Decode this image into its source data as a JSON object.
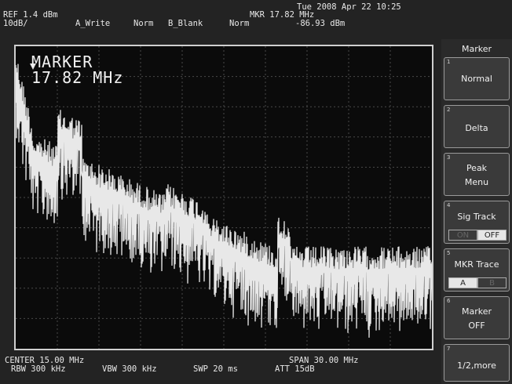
{
  "header": {
    "datetime": "Tue 2008 Apr 22 10:25",
    "ref": "REF 1.4 dBm",
    "scale": "10dB/",
    "trace_a": "A_Write",
    "trace_a_mode": "Norm",
    "trace_b": "B_Blank",
    "trace_b_mode": "Norm",
    "marker_freq": "MKR 17.82 MHz",
    "marker_level": "-86.93 dBm"
  },
  "display": {
    "marker_title": "MARKER",
    "marker_value": "17.82 MHz"
  },
  "footer": {
    "center": "CENTER 15.00 MHz",
    "span": "SPAN 30.00 MHz",
    "rbw": "RBW 300 kHz",
    "vbw": "VBW 300 kHz",
    "swp": "SWP 20 ms",
    "att": "ATT 15dB"
  },
  "menu": {
    "title": "Marker",
    "keys": [
      {
        "num": "1",
        "label": "Normal"
      },
      {
        "num": "2",
        "label": "Delta"
      },
      {
        "num": "3",
        "label1": "Peak",
        "label2": "Menu"
      },
      {
        "num": "4",
        "label": "Sig Track",
        "opt_on": "ON",
        "opt_off": "OFF",
        "selected": "OFF"
      },
      {
        "num": "5",
        "label": "MKR Trace",
        "opt_a": "A",
        "opt_b": "B",
        "selected": "A"
      },
      {
        "num": "6",
        "label1": "Marker",
        "label2": "OFF"
      },
      {
        "num": "7",
        "label": "1/2,more"
      }
    ]
  },
  "colors": {
    "trace": "#e8e8e8",
    "grid": "#4a4a4a",
    "background": "#0b0b0b"
  }
}
